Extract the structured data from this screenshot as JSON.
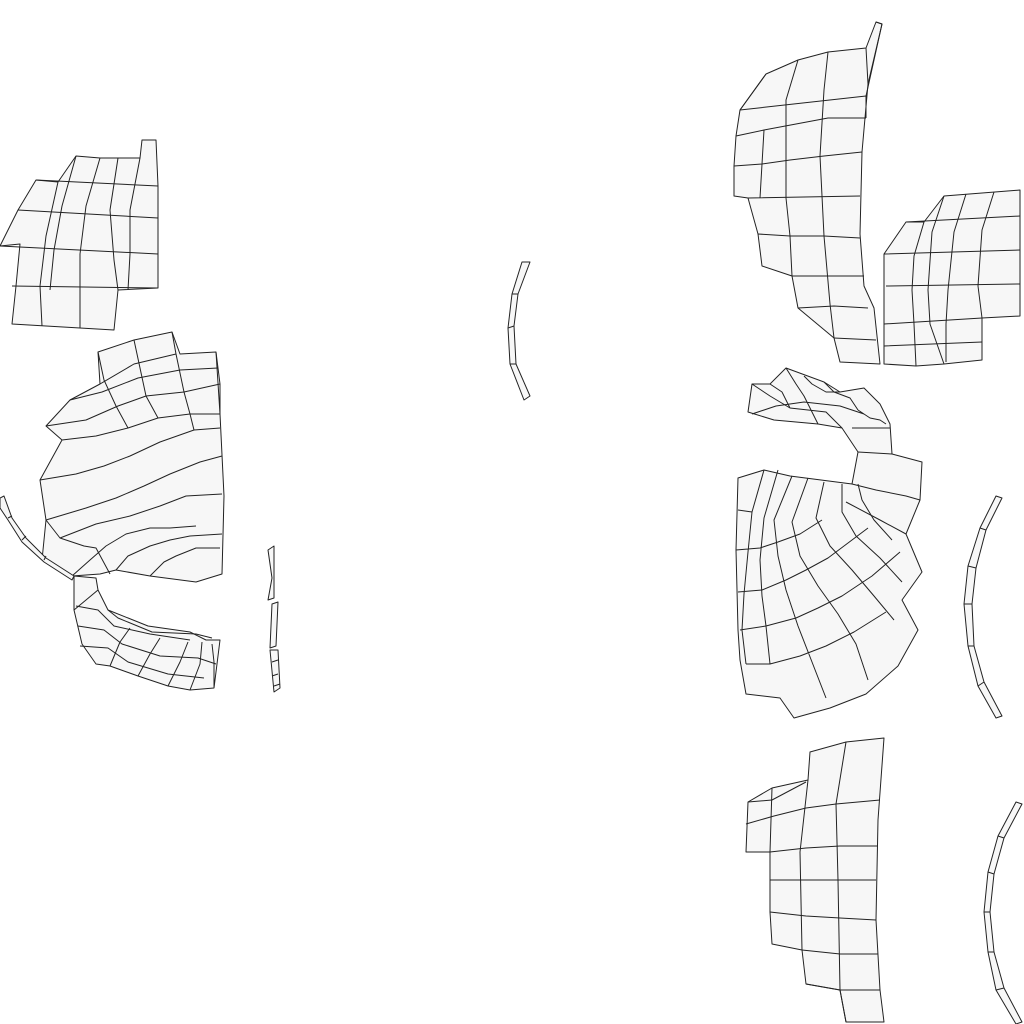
{
  "view": {
    "type": "uv-layout",
    "background_color": "#ffffff"
  },
  "style": {
    "island_fill": "#f7f7f7",
    "wire_color": "#222222"
  },
  "islands": [
    {
      "name": "uv-island-left-top",
      "grid": "4x5"
    },
    {
      "name": "uv-island-left-middle-fan",
      "grid": "fan"
    },
    {
      "name": "uv-island-left-bottom-fan",
      "grid": "fan"
    },
    {
      "name": "uv-island-left-edge-strip",
      "grid": "1x4"
    },
    {
      "name": "uv-island-small-slivers",
      "grid": "1x3"
    },
    {
      "name": "uv-island-center-strip",
      "grid": "1x4"
    },
    {
      "name": "uv-island-right-top",
      "grid": "5x7"
    },
    {
      "name": "uv-island-right-second",
      "grid": "5x5"
    },
    {
      "name": "uv-island-right-middle-fan",
      "grid": "fan"
    },
    {
      "name": "uv-island-right-curve-strip",
      "grid": "1x7"
    },
    {
      "name": "uv-island-right-bottom",
      "grid": "4x7"
    },
    {
      "name": "uv-island-right-bottom-strip",
      "grid": "1x6"
    }
  ]
}
